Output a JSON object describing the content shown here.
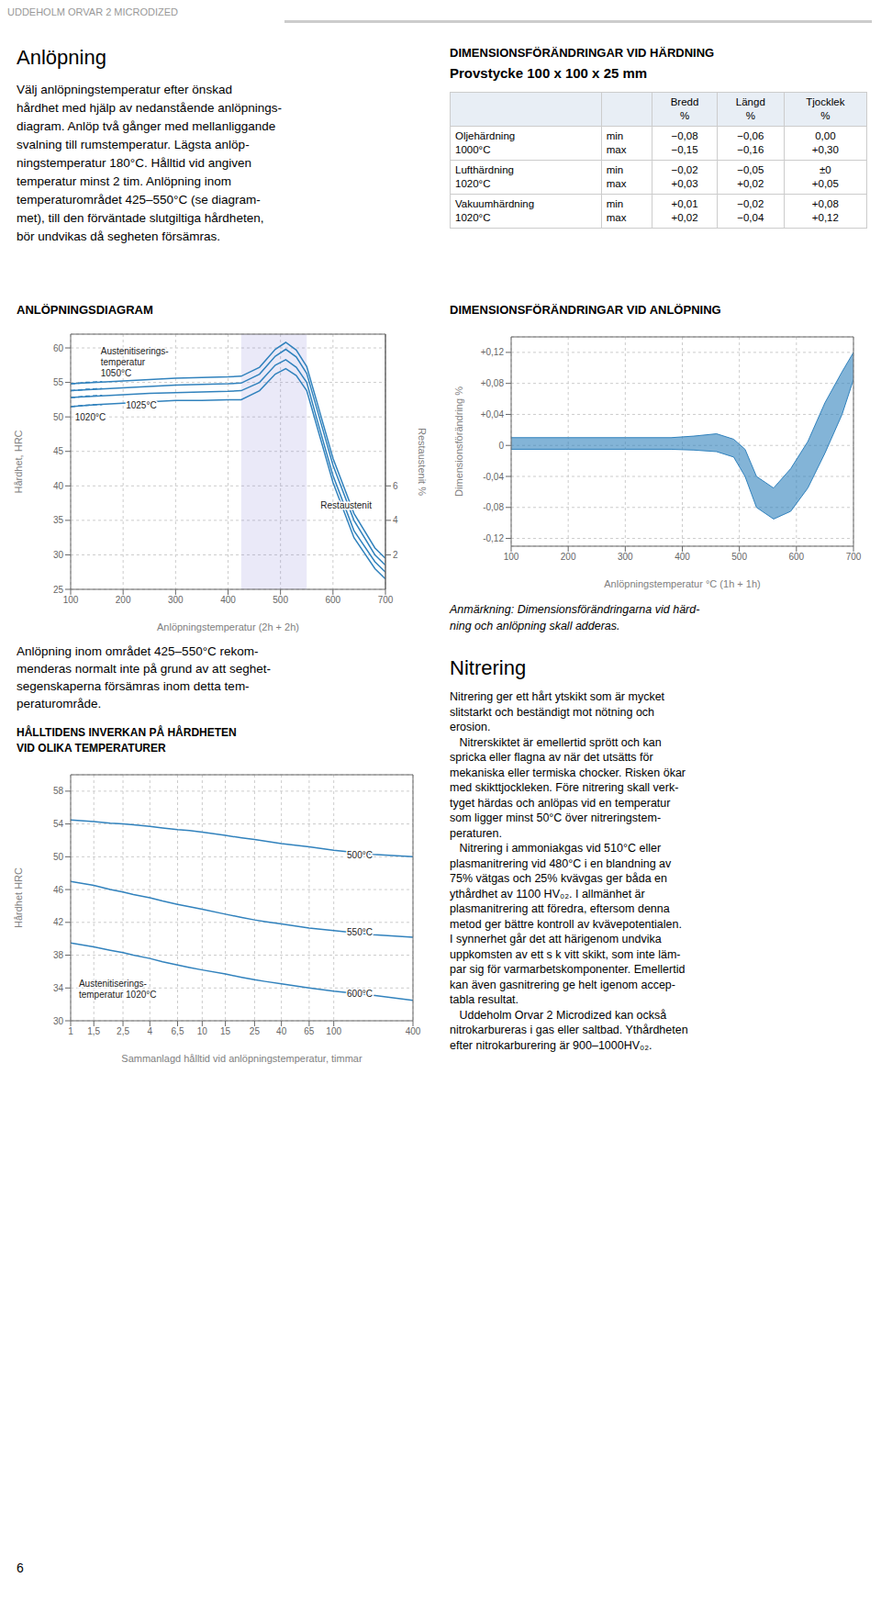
{
  "page_title": "UDDEHOLM ORVAR 2 MICRODIZED",
  "section1_title": "Anlöpning",
  "section1_text_lines": [
    "Välj anlöpningstemperatur efter önskad",
    "hårdhet med hjälp av nedanstående anlöpnings-",
    "diagram. Anlöp två gånger med mellanliggande",
    "svalning till rumstemperatur. Lägsta anlöp-",
    "ningstemperatur 180°C. Hålltid vid angiven",
    "temperatur minst 2 tim. Anlöpning inom",
    "temperaturområdet 425–550°C (se diagram-",
    "met), till den förväntade slutgiltiga hårdheten,",
    "bör undvikas då segheten försämras."
  ],
  "dim_hard_title": "DIMENSIONSFÖRÄNDRINGAR VID HÄRDNING",
  "dim_hard_subtitle": "Provstycke 100 x 100 x 25 mm",
  "table": {
    "header": [
      "Bredd\n%",
      "Längd\n%",
      "Tjocklek\n%"
    ],
    "rows": [
      [
        "Oljehärdning\n1000°C",
        "min\nmax",
        "−0,08\n−0,15",
        "−0,06\n−0,16",
        "0,00\n+0,30"
      ],
      [
        "Lufthärdning\n1020°C",
        "min\nmax",
        "−0,02\n+0,03",
        "−0,05\n+0,02",
        "±0\n+0,05"
      ],
      [
        "Vakuumhärdning\n1020°C",
        "min\nmax",
        "+0,01\n+0,02",
        "−0,02\n−0,04",
        "+0,08\n+0,12"
      ]
    ]
  },
  "anl_note3_lines": [
    "Anmärkning: Dimensionsförändringarna vid härd-",
    "ning och anlöpning skall adderas."
  ],
  "anl_area_text_lines": [
    "Anlöpning inom området 425–550°C rekom-",
    "menderas normalt inte på grund av att seghet-",
    "segenskaperna försämras inom detta tem-",
    "peraturområde."
  ],
  "nitrering_title": "Nitrering",
  "nitrering_text_lines": [
    "Nitrering ger ett hårt ytskikt som är mycket",
    "slitstarkt och beständigt mot nötning och",
    "erosion.",
    "   Nitrerskiktet är emellertid sprött och kan",
    "spricka eller flagna av när det utsätts för",
    "mekaniska eller termiska chocker. Risken ökar",
    "med skikttjockleken. Före nitrering skall verk-",
    "tyget härdas och anlöpas vid en temperatur",
    "som ligger minst 50°C över nitreringstem-",
    "peraturen.",
    "   Nitrering i ammoniakgas vid 510°C eller",
    "plasmanitrering vid 480°C i en blandning av",
    "75% vätgas och 25% kvävgas ger båda en",
    "ythårdhet av 1100 HV₀₂. I allmänhet är",
    "plasmanitrering att föredra, eftersom denna",
    "metod ger bättre kontroll av kvävepotentialen.",
    "I synnerhet går det att härigenom undvika",
    "uppkomsten av ett s k vitt skikt, som inte läm-",
    "par sig för varmarbetskomponenter. Emellertid",
    "kan även gasnitrering ge helt igenom accep-",
    "tabla resultat.",
    "   Uddeholm Orvar 2 Microdized kan också",
    "nitrokarbureras i gas eller saltbad. Ythårdheten",
    "efter nitrokarburering är 900–1000HV₀₂."
  ],
  "page_number": "6",
  "chart_data": [
    {
      "type": "line",
      "title": "ANLÖPNINGSDIAGRAM",
      "x_label": "Anlöpningstemperatur (2h + 2h)",
      "y_label": "Hårdhet, HRC",
      "y2_label": "Restaustenit  %",
      "xlim": [
        100,
        700
      ],
      "xticks": [
        100,
        200,
        300,
        400,
        500,
        600,
        700
      ],
      "ylim": [
        25,
        62
      ],
      "yticks": [
        25,
        30,
        35,
        40,
        45,
        50,
        55,
        60
      ],
      "y2lim": [
        0,
        14.8
      ],
      "y2ticks": [
        2,
        4,
        6
      ],
      "grid": true,
      "highlight_x": [
        425,
        550
      ],
      "x": [
        100,
        150,
        200,
        250,
        300,
        350,
        400,
        425,
        460,
        490,
        510,
        530,
        550,
        570,
        600,
        640,
        680,
        700
      ],
      "series": [
        {
          "values": [
            51.5,
            51.8,
            52.0,
            52.2,
            52.4,
            52.4,
            52.5,
            52.5,
            53.8,
            56.2,
            57.0,
            56.0,
            53.8,
            48.5,
            40.5,
            32.5,
            28.0,
            26.5
          ],
          "line_style": "solid"
        },
        {
          "values": [
            52.8,
            53.0,
            53.2,
            53.4,
            53.5,
            53.6,
            53.7,
            53.8,
            55.0,
            57.5,
            58.3,
            57.2,
            55.0,
            49.5,
            41.5,
            33.5,
            29.0,
            27.5
          ],
          "line_style": "solid"
        },
        {
          "values": [
            53.8,
            54.0,
            54.2,
            54.4,
            54.6,
            54.7,
            54.8,
            54.9,
            56.2,
            58.8,
            59.8,
            58.7,
            56.3,
            51.0,
            43.0,
            35.0,
            30.0,
            28.5
          ],
          "line_style": "solid"
        },
        {
          "values": [
            54.8,
            55.0,
            55.2,
            55.4,
            55.6,
            55.7,
            55.8,
            55.9,
            57.2,
            59.8,
            60.8,
            59.7,
            57.3,
            52.0,
            44.0,
            36.0,
            31.0,
            29.5
          ],
          "line_style": "solid"
        },
        {
          "x": [
            100,
            130,
            160
          ],
          "values": [
            51.5,
            51.7,
            51.8
          ],
          "line_style": "dashed"
        },
        {
          "x": [
            100,
            130,
            160
          ],
          "values": [
            52.8,
            53.0,
            53.1
          ],
          "line_style": "dashed"
        },
        {
          "x": [
            100,
            130,
            160
          ],
          "values": [
            53.8,
            54.0,
            54.1
          ],
          "line_style": "dashed"
        },
        {
          "x": [
            100,
            130,
            160
          ],
          "values": [
            54.8,
            55.0,
            55.1
          ],
          "line_style": "dashed"
        }
      ],
      "annotations": [
        {
          "text": "Austenitiserings-\ntemperatur\n1050°C",
          "x": 152,
          "y": 55.5
        },
        {
          "text": "1020°C",
          "x": 103,
          "y": 50.8
        },
        {
          "text": "1025°C",
          "x": 200,
          "y": 52.5
        },
        {
          "text": "Restaustenit",
          "x": 625,
          "y": 38
        }
      ]
    },
    {
      "type": "range_area",
      "title": "DIMENSIONSFÖRÄNDRINGAR VID ANLÖPNING",
      "x_label": "Anlöpningstemperatur °C (1h + 1h)",
      "y_label": "Dimensionsförändring %",
      "xlim": [
        100,
        700
      ],
      "xticks": [
        100,
        200,
        300,
        400,
        500,
        600,
        700
      ],
      "ylim": [
        -0.13,
        0.14
      ],
      "yticks": [
        {
          "value": -0.12,
          "label": "-0,12"
        },
        {
          "value": -0.08,
          "label": "-0,08"
        },
        {
          "value": -0.04,
          "label": "-0,04"
        },
        0,
        {
          "value": 0.04,
          "label": "+0,04"
        },
        {
          "value": 0.08,
          "label": "+0,08"
        },
        {
          "value": 0.12,
          "label": "+0,12"
        }
      ],
      "grid": true,
      "x": [
        100,
        200,
        300,
        380,
        420,
        460,
        490,
        510,
        530,
        560,
        590,
        620,
        650,
        680,
        700
      ],
      "series": [
        {
          "low": [
            -0.005,
            -0.005,
            -0.005,
            -0.005,
            -0.006,
            -0.008,
            -0.015,
            -0.04,
            -0.08,
            -0.095,
            -0.085,
            -0.055,
            -0.01,
            0.04,
            0.085
          ],
          "high": [
            0.01,
            0.01,
            0.01,
            0.01,
            0.012,
            0.015,
            0.008,
            -0.005,
            -0.04,
            -0.055,
            -0.03,
            0.005,
            0.055,
            0.095,
            0.12
          ]
        }
      ]
    },
    {
      "type": "line",
      "title": "HÅLLTIDENS INVERKAN PÅ HÅRDHETEN\nVID OLIKA TEMPERATURER",
      "x_label": "Sammanlagd hålltid vid anlöpningstemperatur, timmar",
      "y_label": "Hårdhet HRC",
      "log": "x",
      "xlim": [
        1,
        400
      ],
      "xticks": [
        1,
        {
          "value": 1.5,
          "label": "1,5"
        },
        {
          "value": 2.5,
          "label": "2,5"
        },
        4,
        {
          "value": 6.5,
          "label": "6,5"
        },
        10,
        15,
        25,
        40,
        65,
        100,
        400
      ],
      "ylim": [
        30,
        60
      ],
      "yticks": [
        30,
        34,
        38,
        42,
        46,
        50,
        54,
        58
      ],
      "grid": true,
      "x": [
        1,
        1.5,
        2,
        2.5,
        3,
        4,
        5,
        6.5,
        8,
        10,
        15,
        20,
        25,
        30,
        40,
        65,
        100,
        200,
        400
      ],
      "series": [
        {
          "values": [
            54.5,
            54.3,
            54.1,
            54.0,
            53.9,
            53.7,
            53.5,
            53.3,
            53.2,
            53.0,
            52.6,
            52.3,
            52.1,
            51.9,
            51.6,
            51.2,
            50.8,
            50.3,
            50.0
          ],
          "line_style": "solid"
        },
        {
          "values": [
            47.0,
            46.5,
            46.0,
            45.7,
            45.4,
            45.0,
            44.6,
            44.2,
            43.9,
            43.6,
            43.0,
            42.6,
            42.3,
            42.1,
            41.8,
            41.3,
            41.0,
            40.5,
            40.2
          ],
          "line_style": "solid"
        },
        {
          "values": [
            39.5,
            39.0,
            38.6,
            38.3,
            38.0,
            37.6,
            37.2,
            36.8,
            36.5,
            36.2,
            35.7,
            35.3,
            35.0,
            34.8,
            34.5,
            34.0,
            33.6,
            33.1,
            32.5
          ],
          "line_style": "solid"
        }
      ],
      "annotations": [
        {
          "text": "500°C",
          "x": 120,
          "y": 50.9
        },
        {
          "text": "550°C",
          "x": 120,
          "y": 41.5
        },
        {
          "text": "600°C",
          "x": 120,
          "y": 34.0
        },
        {
          "text": "Austenitiserings-\ntemperatur 1020°C",
          "x": 1.1,
          "y": 32.5
        }
      ]
    }
  ]
}
